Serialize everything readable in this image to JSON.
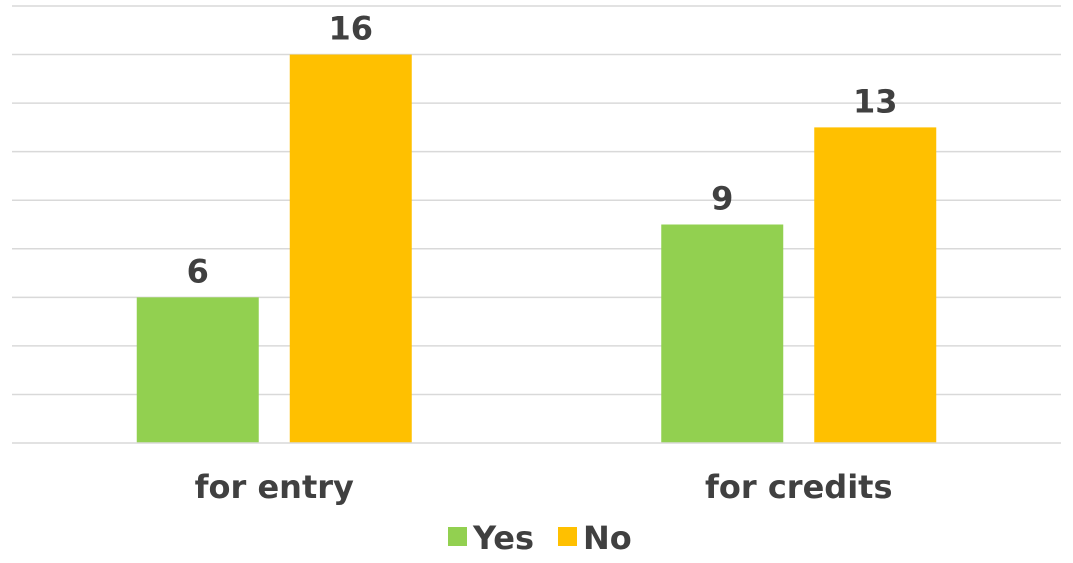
{
  "chart_data": {
    "type": "bar",
    "categories": [
      "for entry",
      "for credits"
    ],
    "series": [
      {
        "name": "Yes",
        "values": [
          6,
          9
        ],
        "color": "#92d050"
      },
      {
        "name": "No",
        "values": [
          16,
          13
        ],
        "color": "#ffc000"
      }
    ],
    "ylim": [
      0,
      18
    ],
    "grid": true,
    "gridline_step": 2,
    "data_labels": true,
    "y_axis_visible": false,
    "legend_position": "bottom"
  }
}
